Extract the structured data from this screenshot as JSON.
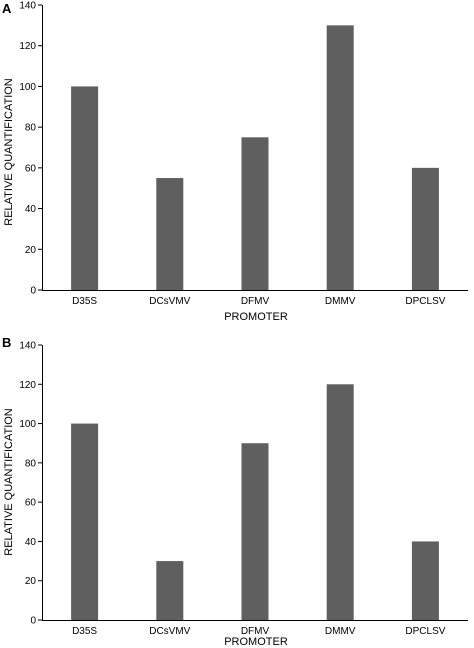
{
  "chart_data": [
    {
      "type": "bar",
      "panel_label": "A",
      "categories": [
        "D35S",
        "DCsVMV",
        "DFMV",
        "DMMV",
        "DPCLSV"
      ],
      "values": [
        100,
        55,
        75,
        130,
        60
      ],
      "xlabel": "PROMOTER",
      "ylabel": "RELATIVE QUANTIFICATION",
      "ylim": [
        0,
        140
      ],
      "yticks": [
        0,
        20,
        40,
        60,
        80,
        100,
        120,
        140
      ],
      "bar_color": "#5f5f5f",
      "grid": false
    },
    {
      "type": "bar",
      "panel_label": "B",
      "categories": [
        "D35S",
        "DCsVMV",
        "DFMV",
        "DMMV",
        "DPCLSV"
      ],
      "values": [
        100,
        30,
        90,
        120,
        40
      ],
      "xlabel": "PROMOTER",
      "ylabel": "RELATIVE QUANTIFICATION",
      "ylim": [
        0,
        140
      ],
      "yticks": [
        0,
        20,
        40,
        60,
        80,
        100,
        120,
        140
      ],
      "bar_color": "#5f5f5f",
      "grid": false
    }
  ]
}
